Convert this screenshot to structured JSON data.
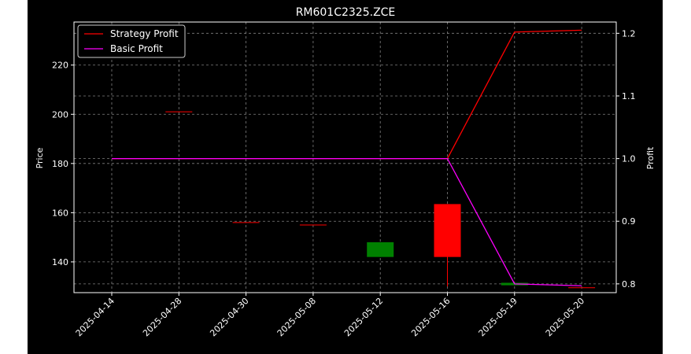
{
  "chart_data": {
    "type": "candlestick+line",
    "title": "RM601C2325.ZCE",
    "xlabel": "",
    "ylabel_left": "Price",
    "ylabel_right": "Profit",
    "categories": [
      "2025-04-14",
      "2025-04-28",
      "2025-04-30",
      "2025-05-08",
      "2025-05-12",
      "2025-05-16",
      "2025-05-19",
      "2025-05-20"
    ],
    "ylim_left": [
      127.5,
      237.5
    ],
    "yticks_left": [
      140,
      160,
      180,
      200,
      220
    ],
    "ylim_right": [
      0.786,
      1.218
    ],
    "yticks_right": [
      0.8,
      0.9,
      1.0,
      1.1,
      1.2
    ],
    "grid": true,
    "legend_position": "upper-left",
    "candles": [
      {
        "date": "2025-04-28",
        "open": 201,
        "high": 201,
        "low": 201,
        "close": 201
      },
      {
        "date": "2025-04-30",
        "open": 156,
        "high": 156,
        "low": 156,
        "close": 156
      },
      {
        "date": "2025-05-08",
        "open": 155,
        "high": 155,
        "low": 155,
        "close": 155
      },
      {
        "date": "2025-05-12",
        "open": 142,
        "high": 148,
        "low": 142,
        "close": 148
      },
      {
        "date": "2025-05-16",
        "open": 163.5,
        "high": 163.5,
        "low": 130,
        "close": 142
      },
      {
        "date": "2025-05-19",
        "open": 130.5,
        "high": 131.5,
        "low": 130.5,
        "close": 131.5
      },
      {
        "date": "2025-05-20",
        "open": 129.5,
        "high": 129.5,
        "low": 129.5,
        "close": 129.5
      }
    ],
    "series": [
      {
        "name": "Strategy Profit",
        "color": "#ff0000",
        "values": [
          1.0,
          1.0,
          1.0,
          1.0,
          1.0,
          1.0,
          1.202,
          1.205
        ]
      },
      {
        "name": "Basic Profit",
        "color": "#ff00ff",
        "values": [
          1.0,
          1.0,
          1.0,
          1.0,
          1.0,
          1.0,
          0.8,
          0.797
        ]
      }
    ],
    "colors": {
      "background": "#000000",
      "axes": "#ffffff",
      "grid": "#808080",
      "up": "#008000",
      "down": "#ff0000"
    }
  }
}
